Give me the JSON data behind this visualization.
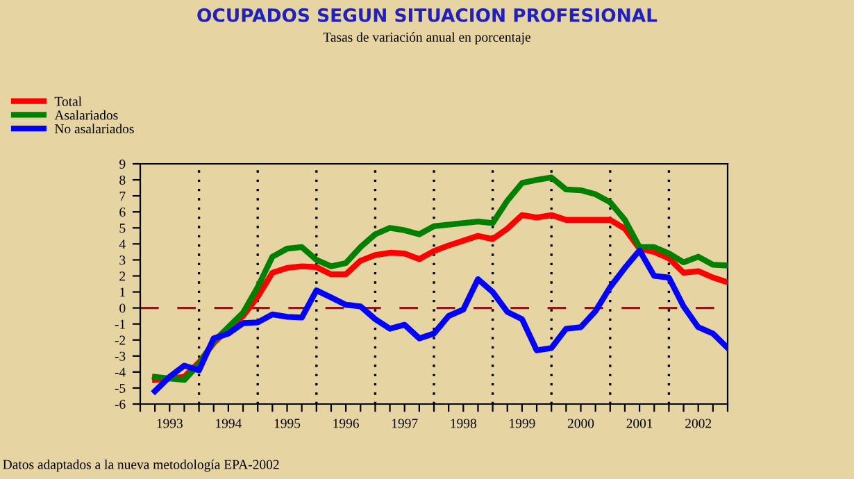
{
  "chart_data": {
    "type": "line",
    "title": "OCUPADOS SEGUN SITUACION PROFESIONAL",
    "subtitle": "Tasas de variación anual en porcentaje",
    "annotations": [
      "Datos adaptados a la nueva metodología EPA-2002"
    ],
    "x": [
      1993.25,
      1993.5,
      1993.75,
      1994,
      1994.25,
      1994.5,
      1994.75,
      1995,
      1995.25,
      1995.5,
      1995.75,
      1996,
      1996.25,
      1996.5,
      1996.75,
      1997,
      1997.25,
      1997.5,
      1997.75,
      1998,
      1998.25,
      1998.5,
      1998.75,
      1999,
      1999.25,
      1999.5,
      1999.75,
      2000,
      2000.25,
      2000.5,
      2000.75,
      2001,
      2001.25,
      2001.5,
      2001.75,
      2002,
      2002.25,
      2002.5,
      2002.75,
      2003
    ],
    "series": [
      {
        "name": "Total",
        "color": "#ff0000",
        "values": [
          -4.5,
          -4.4,
          -4.3,
          -3.4,
          -2.2,
          -1.3,
          -0.5,
          0.7,
          2.2,
          2.5,
          2.6,
          2.55,
          2.1,
          2.1,
          2.95,
          3.3,
          3.45,
          3.4,
          3.05,
          3.55,
          3.9,
          4.2,
          4.5,
          4.3,
          4.95,
          5.8,
          5.65,
          5.8,
          5.5,
          5.5,
          5.5,
          5.5,
          4.95,
          3.7,
          3.5,
          3.1,
          2.2,
          2.3,
          1.9,
          1.6
        ]
      },
      {
        "name": "Asalariados",
        "color": "#008000",
        "values": [
          -4.3,
          -4.4,
          -4.5,
          -3.5,
          -2.1,
          -1.2,
          -0.3,
          1.3,
          3.2,
          3.7,
          3.8,
          3.0,
          2.6,
          2.8,
          3.8,
          4.6,
          5.0,
          4.85,
          4.6,
          5.1,
          5.2,
          5.3,
          5.4,
          5.3,
          6.7,
          7.8,
          8.0,
          8.15,
          7.4,
          7.35,
          7.1,
          6.6,
          5.5,
          3.8,
          3.8,
          3.4,
          2.85,
          3.2,
          2.7,
          2.65
        ]
      },
      {
        "name": "No asalariados",
        "color": "#0000ff",
        "values": [
          -5.2,
          -4.3,
          -3.6,
          -3.9,
          -1.9,
          -1.6,
          -0.95,
          -0.9,
          -0.4,
          -0.55,
          -0.6,
          1.1,
          0.65,
          0.2,
          0.1,
          -0.7,
          -1.3,
          -1.05,
          -1.9,
          -1.6,
          -0.5,
          -0.1,
          1.8,
          1.0,
          -0.25,
          -0.7,
          -2.65,
          -2.5,
          -1.3,
          -1.2,
          -0.2,
          1.3,
          2.5,
          3.6,
          2.0,
          1.9,
          0.1,
          -1.2,
          -1.6,
          -2.5
        ]
      }
    ],
    "xlim": [
      1993,
      2003
    ],
    "xticks": [
      {
        "value": 1993,
        "label": null
      },
      {
        "value": 1993.25,
        "label": null
      },
      {
        "value": 1993.5,
        "label": "1993"
      },
      {
        "value": 1993.75,
        "label": null
      },
      {
        "value": 1994,
        "label": null
      },
      {
        "value": 1994.25,
        "label": null
      },
      {
        "value": 1994.5,
        "label": "1994"
      },
      {
        "value": 1994.75,
        "label": null
      },
      {
        "value": 1995,
        "label": null
      },
      {
        "value": 1995.25,
        "label": null
      },
      {
        "value": 1995.5,
        "label": "1995"
      },
      {
        "value": 1995.75,
        "label": null
      },
      {
        "value": 1996,
        "label": null
      },
      {
        "value": 1996.25,
        "label": null
      },
      {
        "value": 1996.5,
        "label": "1996"
      },
      {
        "value": 1996.75,
        "label": null
      },
      {
        "value": 1997,
        "label": null
      },
      {
        "value": 1997.25,
        "label": null
      },
      {
        "value": 1997.5,
        "label": "1997"
      },
      {
        "value": 1997.75,
        "label": null
      },
      {
        "value": 1998,
        "label": null
      },
      {
        "value": 1998.25,
        "label": null
      },
      {
        "value": 1998.5,
        "label": "1998"
      },
      {
        "value": 1998.75,
        "label": null
      },
      {
        "value": 1999,
        "label": null
      },
      {
        "value": 1999.25,
        "label": null
      },
      {
        "value": 1999.5,
        "label": "1999"
      },
      {
        "value": 1999.75,
        "label": null
      },
      {
        "value": 2000,
        "label": null
      },
      {
        "value": 2000.25,
        "label": null
      },
      {
        "value": 2000.5,
        "label": "2000"
      },
      {
        "value": 2000.75,
        "label": null
      },
      {
        "value": 2001,
        "label": null
      },
      {
        "value": 2001.25,
        "label": null
      },
      {
        "value": 2001.5,
        "label": "2001"
      },
      {
        "value": 2001.75,
        "label": null
      },
      {
        "value": 2002,
        "label": null
      },
      {
        "value": 2002.25,
        "label": null
      },
      {
        "value": 2002.5,
        "label": "2002"
      },
      {
        "value": 2002.75,
        "label": null
      },
      {
        "value": 2003,
        "label": null
      }
    ],
    "ylim": [
      -6,
      9
    ],
    "yticks": [
      -6,
      -5,
      -4,
      -3,
      -2,
      -1,
      0,
      1,
      2,
      3,
      4,
      5,
      6,
      7,
      8,
      9
    ],
    "ref_lines": [
      {
        "axis": "y",
        "value": 0,
        "color": "#8b1a1a",
        "line_style": "dashed"
      },
      {
        "axis": "x",
        "value": 1994,
        "color": "#000000",
        "line_style": "dotted"
      },
      {
        "axis": "x",
        "value": 1995,
        "color": "#000000",
        "line_style": "dotted"
      },
      {
        "axis": "x",
        "value": 1996,
        "color": "#000000",
        "line_style": "dotted"
      },
      {
        "axis": "x",
        "value": 1997,
        "color": "#000000",
        "line_style": "dotted"
      },
      {
        "axis": "x",
        "value": 1998,
        "color": "#000000",
        "line_style": "dotted"
      },
      {
        "axis": "x",
        "value": 1999,
        "color": "#000000",
        "line_style": "dotted"
      },
      {
        "axis": "x",
        "value": 2000,
        "color": "#000000",
        "line_style": "dotted"
      },
      {
        "axis": "x",
        "value": 2001,
        "color": "#000000",
        "line_style": "dotted"
      },
      {
        "axis": "x",
        "value": 2002,
        "color": "#000000",
        "line_style": "dotted"
      }
    ],
    "grid": false,
    "legend": "top left",
    "marker": "none",
    "line_style": "solid"
  }
}
